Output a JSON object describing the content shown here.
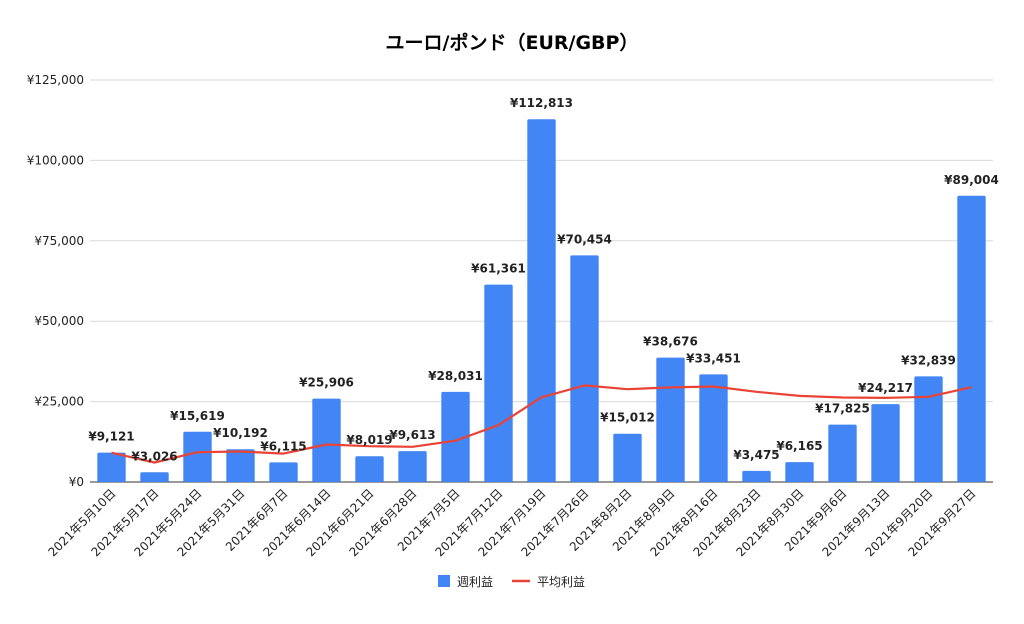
{
  "chart_data": {
    "type": "bar",
    "title": "ユーロ/ポンド（EUR/GBP）",
    "xlabel": "",
    "ylabel": "",
    "ylim": [
      0,
      125000
    ],
    "yticks": [
      "¥0",
      "¥25,000",
      "¥50,000",
      "¥75,000",
      "¥100,000",
      "¥125,000"
    ],
    "ytick_values": [
      0,
      25000,
      50000,
      75000,
      100000,
      125000
    ],
    "grid": true,
    "legend_position": "bottom",
    "categories": [
      "2021年5月10日",
      "2021年5月17日",
      "2021年5月24日",
      "2021年5月31日",
      "2021年6月7日",
      "2021年6月14日",
      "2021年6月21日",
      "2021年6月28日",
      "2021年7月5日",
      "2021年7月12日",
      "2021年7月19日",
      "2021年7月26日",
      "2021年8月2日",
      "2021年8月9日",
      "2021年8月16日",
      "2021年8月23日",
      "2021年8月30日",
      "2021年9月6日",
      "2021年9月13日",
      "2021年9月20日",
      "2021年9月27日"
    ],
    "series": [
      {
        "name": "週利益",
        "type": "bar",
        "color": "#4285f4",
        "values": [
          9121,
          3026,
          15619,
          10192,
          6115,
          25906,
          8019,
          9613,
          28031,
          61361,
          112813,
          70454,
          15012,
          38676,
          33451,
          3475,
          6165,
          17825,
          24217,
          32839,
          89004
        ],
        "labels": [
          "¥9,121",
          "¥3,026",
          "¥15,619",
          "¥10,192",
          "¥6,115",
          "¥25,906",
          "¥8,019",
          "¥9,613",
          "¥28,031",
          "¥61,361",
          "¥112,813",
          "¥70,454",
          "¥15,012",
          "¥38,676",
          "¥33,451",
          "¥3,475",
          "¥6,165",
          "¥17,825",
          "¥24,217",
          "¥32,839",
          "¥89,004"
        ]
      },
      {
        "name": "平均利益",
        "type": "line",
        "color": "#ea4335",
        "values": [
          9121,
          6074,
          9255,
          9490,
          8819,
          11667,
          11145,
          10954,
          12852,
          17702,
          26348,
          30023,
          28868,
          29430,
          29697,
          28058,
          26770,
          26275,
          26166,
          26499,
          29475
        ]
      }
    ]
  }
}
